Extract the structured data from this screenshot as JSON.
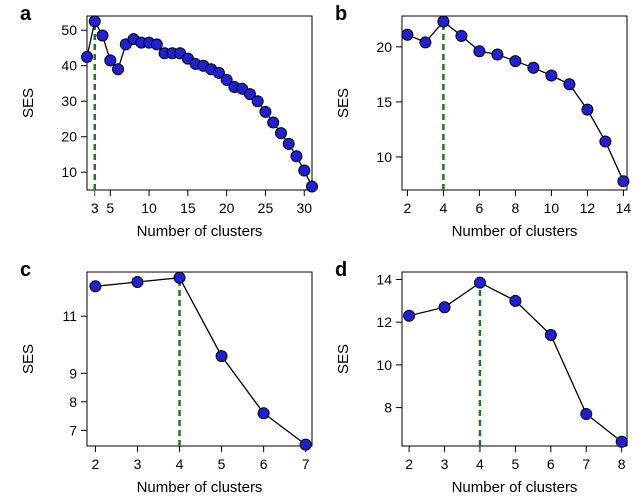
{
  "colors": {
    "marker_fill": "#1f1fd6",
    "marker_stroke": "#000000",
    "line": "#000000",
    "highlight": "#1e7a1e"
  },
  "chart_data": [
    {
      "panel": "a",
      "type": "line",
      "xlabel": "Number of clusters",
      "ylabel": "SES",
      "xlim": [
        2,
        31
      ],
      "ylim": [
        5,
        54
      ],
      "xticks": [
        5,
        10,
        15,
        20,
        25,
        30
      ],
      "yticks": [
        10,
        20,
        30,
        40,
        50
      ],
      "highlight_x": 3,
      "highlight_label": "3",
      "x": [
        2,
        3,
        4,
        5,
        6,
        7,
        8,
        9,
        10,
        11,
        12,
        13,
        14,
        15,
        16,
        17,
        18,
        19,
        20,
        21,
        22,
        23,
        24,
        25,
        26,
        27,
        28,
        29,
        30,
        31
      ],
      "y": [
        42.5,
        52.5,
        48.5,
        41.5,
        39,
        46,
        47.5,
        46.5,
        46.5,
        46,
        43.5,
        43.5,
        43.5,
        42,
        40.5,
        40,
        39,
        38,
        36,
        34,
        33.5,
        32,
        30,
        27,
        24,
        21,
        18,
        14.5,
        10.5,
        6
      ]
    },
    {
      "panel": "b",
      "type": "line",
      "xlabel": "Number of clusters",
      "ylabel": "SES",
      "xlim": [
        1.7,
        14.2
      ],
      "ylim": [
        7,
        22.8
      ],
      "xticks": [
        2,
        4,
        6,
        8,
        10,
        12,
        14
      ],
      "yticks": [
        10,
        15,
        20
      ],
      "highlight_x": 4,
      "highlight_label": "4",
      "x": [
        2,
        3,
        4,
        5,
        6,
        7,
        8,
        9,
        10,
        11,
        12,
        13,
        14
      ],
      "y": [
        21.1,
        20.4,
        22.3,
        21.0,
        19.6,
        19.3,
        18.7,
        18.1,
        17.4,
        16.6,
        14.3,
        11.4,
        7.8
      ]
    },
    {
      "panel": "c",
      "type": "line",
      "xlabel": "Number of clusters",
      "ylabel": "SES",
      "xlim": [
        1.8,
        7.15
      ],
      "ylim": [
        6.45,
        12.55
      ],
      "xticks": [
        2,
        3,
        4,
        5,
        6,
        7
      ],
      "xtick_labels": [
        "2",
        "3",
        "4",
        "5",
        "6",
        "7"
      ],
      "yticks": [
        7,
        8,
        9,
        11
      ],
      "highlight_x": 4,
      "highlight_label": "4",
      "x": [
        2,
        3,
        4,
        5,
        6,
        7
      ],
      "y": [
        12.05,
        12.2,
        12.35,
        9.6,
        7.6,
        6.5
      ]
    },
    {
      "panel": "d",
      "type": "line",
      "xlabel": "Number of clusters",
      "ylabel": "SES",
      "xlim": [
        1.8,
        8.15
      ],
      "ylim": [
        6.2,
        14.35
      ],
      "xticks": [
        2,
        3,
        4,
        5,
        6,
        7,
        8
      ],
      "xtick_labels": [
        "2",
        "3",
        "4",
        "5",
        "6",
        "7",
        "8"
      ],
      "yticks": [
        8,
        10,
        12,
        14
      ],
      "highlight_x": 4,
      "highlight_label": "4",
      "x": [
        2,
        3,
        4,
        5,
        6,
        7,
        8
      ],
      "y": [
        12.3,
        12.7,
        13.85,
        13.0,
        11.4,
        7.7,
        6.4
      ]
    }
  ]
}
